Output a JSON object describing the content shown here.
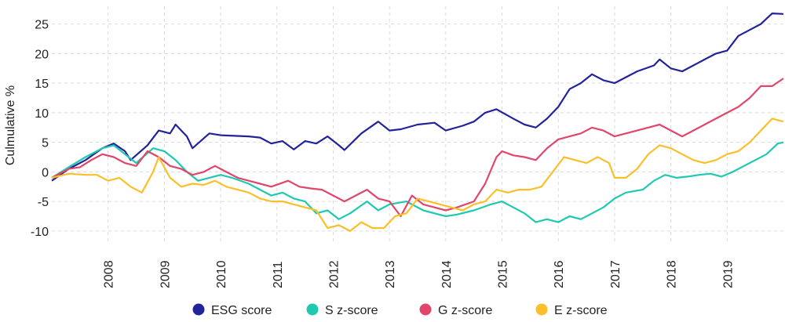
{
  "chart_data": {
    "type": "line",
    "ylabel": "Culmulative %",
    "xlabel": "",
    "title": "",
    "ylim": [
      -12,
      28
    ],
    "xlim": [
      2007.0,
      2020.0
    ],
    "y_ticks": [
      -10,
      -5,
      0,
      5,
      10,
      15,
      20,
      25
    ],
    "x_ticks": [
      "2008",
      "2009",
      "2010",
      "2011",
      "2012",
      "2013",
      "2014",
      "2015",
      "2016",
      "2017",
      "2018",
      "2019"
    ],
    "grid": true,
    "legend_position": "bottom",
    "series": [
      {
        "name": "ESG score",
        "color": "#22229a",
        "points": [
          [
            2007.0,
            -1.5
          ],
          [
            2007.3,
            0.5
          ],
          [
            2007.6,
            2.0
          ],
          [
            2007.9,
            4.0
          ],
          [
            2008.1,
            4.8
          ],
          [
            2008.3,
            3.5
          ],
          [
            2008.4,
            2.0
          ],
          [
            2008.7,
            4.5
          ],
          [
            2008.9,
            7.0
          ],
          [
            2009.1,
            6.5
          ],
          [
            2009.2,
            8.0
          ],
          [
            2009.4,
            6.0
          ],
          [
            2009.5,
            4.0
          ],
          [
            2009.8,
            6.5
          ],
          [
            2010.0,
            6.2
          ],
          [
            2010.5,
            6.0
          ],
          [
            2010.7,
            5.8
          ],
          [
            2010.9,
            4.8
          ],
          [
            2011.1,
            5.2
          ],
          [
            2011.3,
            3.8
          ],
          [
            2011.5,
            5.2
          ],
          [
            2011.7,
            4.8
          ],
          [
            2011.9,
            6.0
          ],
          [
            2012.1,
            4.5
          ],
          [
            2012.2,
            3.7
          ],
          [
            2012.5,
            6.5
          ],
          [
            2012.8,
            8.5
          ],
          [
            2013.0,
            7.0
          ],
          [
            2013.2,
            7.2
          ],
          [
            2013.5,
            8.0
          ],
          [
            2013.8,
            8.3
          ],
          [
            2014.0,
            7.0
          ],
          [
            2014.3,
            7.8
          ],
          [
            2014.5,
            8.5
          ],
          [
            2014.7,
            10.0
          ],
          [
            2014.9,
            10.6
          ],
          [
            2015.2,
            9.0
          ],
          [
            2015.4,
            8.0
          ],
          [
            2015.6,
            7.5
          ],
          [
            2015.8,
            9.0
          ],
          [
            2016.0,
            11.0
          ],
          [
            2016.2,
            14.0
          ],
          [
            2016.4,
            15.0
          ],
          [
            2016.6,
            16.5
          ],
          [
            2016.8,
            15.5
          ],
          [
            2017.0,
            15.0
          ],
          [
            2017.2,
            16.0
          ],
          [
            2017.4,
            17.0
          ],
          [
            2017.7,
            18.0
          ],
          [
            2017.8,
            19.0
          ],
          [
            2018.0,
            17.5
          ],
          [
            2018.2,
            17.0
          ],
          [
            2018.4,
            18.0
          ],
          [
            2018.6,
            19.0
          ],
          [
            2018.8,
            20.0
          ],
          [
            2019.0,
            20.5
          ],
          [
            2019.2,
            23.0
          ],
          [
            2019.4,
            24.0
          ],
          [
            2019.6,
            25.0
          ],
          [
            2019.8,
            26.8
          ],
          [
            2020.0,
            26.7
          ]
        ]
      },
      {
        "name": "S z-score",
        "color": "#1fc9b0",
        "points": [
          [
            2007.0,
            -1.0
          ],
          [
            2007.3,
            0.8
          ],
          [
            2007.6,
            2.5
          ],
          [
            2007.9,
            4.0
          ],
          [
            2008.1,
            4.5
          ],
          [
            2008.3,
            3.0
          ],
          [
            2008.5,
            1.5
          ],
          [
            2008.8,
            4.0
          ],
          [
            2009.0,
            3.5
          ],
          [
            2009.2,
            2.0
          ],
          [
            2009.4,
            0.0
          ],
          [
            2009.6,
            -1.5
          ],
          [
            2009.8,
            -1.0
          ],
          [
            2010.0,
            -0.5
          ],
          [
            2010.2,
            -1.0
          ],
          [
            2010.5,
            -2.0
          ],
          [
            2010.7,
            -3.0
          ],
          [
            2010.9,
            -4.0
          ],
          [
            2011.1,
            -3.5
          ],
          [
            2011.3,
            -4.5
          ],
          [
            2011.5,
            -5.0
          ],
          [
            2011.7,
            -7.0
          ],
          [
            2011.9,
            -6.5
          ],
          [
            2012.1,
            -8.0
          ],
          [
            2012.3,
            -7.0
          ],
          [
            2012.6,
            -5.0
          ],
          [
            2012.8,
            -6.5
          ],
          [
            2013.0,
            -5.5
          ],
          [
            2013.3,
            -5.0
          ],
          [
            2013.6,
            -6.5
          ],
          [
            2013.8,
            -7.0
          ],
          [
            2014.0,
            -7.5
          ],
          [
            2014.2,
            -7.2
          ],
          [
            2014.5,
            -6.5
          ],
          [
            2014.8,
            -5.5
          ],
          [
            2015.0,
            -5.0
          ],
          [
            2015.2,
            -6.0
          ],
          [
            2015.4,
            -7.0
          ],
          [
            2015.6,
            -8.5
          ],
          [
            2015.8,
            -8.0
          ],
          [
            2016.0,
            -8.5
          ],
          [
            2016.2,
            -7.5
          ],
          [
            2016.4,
            -8.0
          ],
          [
            2016.6,
            -7.0
          ],
          [
            2016.8,
            -6.0
          ],
          [
            2017.0,
            -4.5
          ],
          [
            2017.2,
            -3.5
          ],
          [
            2017.5,
            -3.0
          ],
          [
            2017.7,
            -1.5
          ],
          [
            2017.9,
            -0.5
          ],
          [
            2018.1,
            -1.0
          ],
          [
            2018.3,
            -0.8
          ],
          [
            2018.5,
            -0.5
          ],
          [
            2018.7,
            -0.3
          ],
          [
            2018.9,
            -0.8
          ],
          [
            2019.1,
            0.0
          ],
          [
            2019.3,
            1.0
          ],
          [
            2019.5,
            2.0
          ],
          [
            2019.7,
            3.0
          ],
          [
            2019.9,
            4.8
          ],
          [
            2020.0,
            5.0
          ]
        ]
      },
      {
        "name": "G z-score",
        "color": "#e0466a",
        "points": [
          [
            2007.0,
            -1.0
          ],
          [
            2007.3,
            0.5
          ],
          [
            2007.5,
            0.8
          ],
          [
            2007.7,
            2.0
          ],
          [
            2007.9,
            3.0
          ],
          [
            2008.1,
            2.5
          ],
          [
            2008.3,
            1.5
          ],
          [
            2008.5,
            1.0
          ],
          [
            2008.7,
            3.5
          ],
          [
            2008.9,
            2.5
          ],
          [
            2009.1,
            1.0
          ],
          [
            2009.3,
            0.5
          ],
          [
            2009.5,
            -0.5
          ],
          [
            2009.7,
            0.0
          ],
          [
            2009.9,
            1.0
          ],
          [
            2010.1,
            0.0
          ],
          [
            2010.3,
            -1.0
          ],
          [
            2010.5,
            -1.5
          ],
          [
            2010.7,
            -2.0
          ],
          [
            2010.9,
            -2.5
          ],
          [
            2011.2,
            -1.5
          ],
          [
            2011.4,
            -2.5
          ],
          [
            2011.6,
            -2.8
          ],
          [
            2011.8,
            -3.0
          ],
          [
            2012.0,
            -4.0
          ],
          [
            2012.2,
            -5.0
          ],
          [
            2012.4,
            -4.0
          ],
          [
            2012.6,
            -3.0
          ],
          [
            2012.8,
            -4.5
          ],
          [
            2013.0,
            -5.0
          ],
          [
            2013.2,
            -7.5
          ],
          [
            2013.4,
            -4.0
          ],
          [
            2013.6,
            -5.5
          ],
          [
            2013.8,
            -6.0
          ],
          [
            2014.0,
            -6.5
          ],
          [
            2014.2,
            -6.0
          ],
          [
            2014.5,
            -5.0
          ],
          [
            2014.7,
            -2.0
          ],
          [
            2014.9,
            2.5
          ],
          [
            2015.0,
            3.5
          ],
          [
            2015.2,
            2.8
          ],
          [
            2015.4,
            2.5
          ],
          [
            2015.6,
            2.0
          ],
          [
            2015.8,
            4.0
          ],
          [
            2016.0,
            5.5
          ],
          [
            2016.2,
            6.0
          ],
          [
            2016.4,
            6.5
          ],
          [
            2016.6,
            7.5
          ],
          [
            2016.8,
            7.0
          ],
          [
            2017.0,
            6.0
          ],
          [
            2017.2,
            6.5
          ],
          [
            2017.4,
            7.0
          ],
          [
            2017.6,
            7.5
          ],
          [
            2017.8,
            8.0
          ],
          [
            2018.0,
            7.0
          ],
          [
            2018.2,
            6.0
          ],
          [
            2018.4,
            7.0
          ],
          [
            2018.6,
            8.0
          ],
          [
            2018.8,
            9.0
          ],
          [
            2019.0,
            10.0
          ],
          [
            2019.2,
            11.0
          ],
          [
            2019.4,
            12.5
          ],
          [
            2019.6,
            14.5
          ],
          [
            2019.8,
            14.5
          ],
          [
            2020.0,
            15.8
          ]
        ]
      },
      {
        "name": "E z-score",
        "color": "#fbbf2a",
        "points": [
          [
            2007.0,
            -1.0
          ],
          [
            2007.3,
            -0.3
          ],
          [
            2007.6,
            -0.5
          ],
          [
            2007.8,
            -0.5
          ],
          [
            2008.0,
            -1.5
          ],
          [
            2008.2,
            -1.0
          ],
          [
            2008.4,
            -2.5
          ],
          [
            2008.6,
            -3.5
          ],
          [
            2008.8,
            0.0
          ],
          [
            2008.9,
            2.5
          ],
          [
            2009.1,
            -1.0
          ],
          [
            2009.3,
            -2.5
          ],
          [
            2009.5,
            -2.0
          ],
          [
            2009.7,
            -2.2
          ],
          [
            2009.9,
            -1.5
          ],
          [
            2010.1,
            -2.5
          ],
          [
            2010.3,
            -3.0
          ],
          [
            2010.5,
            -3.5
          ],
          [
            2010.7,
            -4.5
          ],
          [
            2010.9,
            -5.0
          ],
          [
            2011.1,
            -5.0
          ],
          [
            2011.3,
            -5.5
          ],
          [
            2011.5,
            -6.0
          ],
          [
            2011.7,
            -6.5
          ],
          [
            2011.9,
            -9.5
          ],
          [
            2012.1,
            -9.0
          ],
          [
            2012.3,
            -10.0
          ],
          [
            2012.5,
            -8.5
          ],
          [
            2012.7,
            -9.5
          ],
          [
            2012.9,
            -9.5
          ],
          [
            2013.1,
            -7.5
          ],
          [
            2013.3,
            -7.0
          ],
          [
            2013.5,
            -4.5
          ],
          [
            2013.7,
            -5.0
          ],
          [
            2013.9,
            -5.5
          ],
          [
            2014.1,
            -6.0
          ],
          [
            2014.3,
            -6.5
          ],
          [
            2014.5,
            -5.5
          ],
          [
            2014.7,
            -5.0
          ],
          [
            2014.9,
            -3.0
          ],
          [
            2015.1,
            -3.5
          ],
          [
            2015.3,
            -3.0
          ],
          [
            2015.5,
            -3.0
          ],
          [
            2015.7,
            -2.5
          ],
          [
            2015.9,
            0.0
          ],
          [
            2016.1,
            2.5
          ],
          [
            2016.3,
            2.0
          ],
          [
            2016.5,
            1.5
          ],
          [
            2016.7,
            2.5
          ],
          [
            2016.9,
            1.5
          ],
          [
            2017.0,
            -1.0
          ],
          [
            2017.2,
            -1.0
          ],
          [
            2017.4,
            0.5
          ],
          [
            2017.6,
            3.0
          ],
          [
            2017.8,
            4.5
          ],
          [
            2018.0,
            4.0
          ],
          [
            2018.2,
            3.0
          ],
          [
            2018.4,
            2.0
          ],
          [
            2018.6,
            1.5
          ],
          [
            2018.8,
            2.0
          ],
          [
            2019.0,
            3.0
          ],
          [
            2019.2,
            3.5
          ],
          [
            2019.4,
            5.0
          ],
          [
            2019.6,
            7.0
          ],
          [
            2019.8,
            9.0
          ],
          [
            2020.0,
            8.5
          ]
        ]
      }
    ]
  }
}
